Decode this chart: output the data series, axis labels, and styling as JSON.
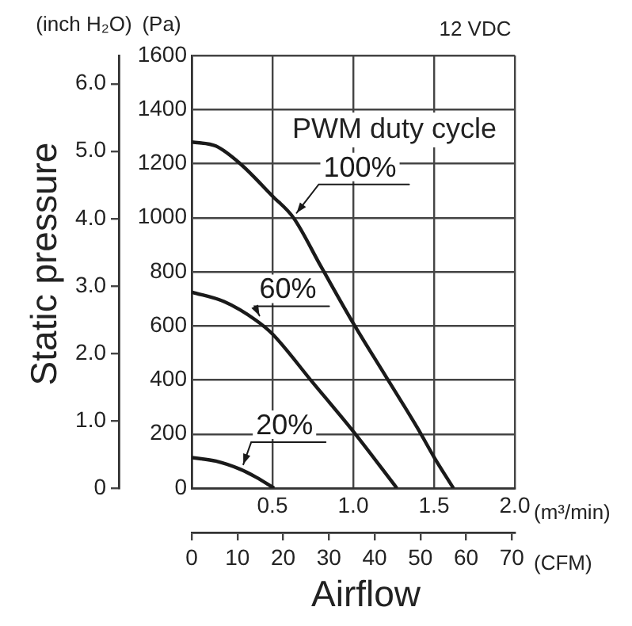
{
  "chart_data": {
    "type": "line",
    "annotations": [
      "12 VDC",
      "PWM duty cycle",
      "Static pressure",
      "Airflow"
    ],
    "xlabel": "(m³/min)",
    "x2label": "(CFM)",
    "ylabel": "(Pa)",
    "y2label": "(inch H₂O)",
    "xlim": [
      0,
      2
    ],
    "xticks": [
      {
        "value": 0.5,
        "label": "0.5"
      },
      {
        "value": 1,
        "label": "1.0"
      },
      {
        "value": 1.5,
        "label": "1.5"
      },
      {
        "value": 2,
        "label": "2.0"
      }
    ],
    "x2lim": [
      0,
      70.63
    ],
    "x2ticks": [
      0,
      10,
      20,
      30,
      40,
      50,
      60,
      70
    ],
    "ylim": [
      0,
      1600
    ],
    "yticks": [
      0,
      200,
      400,
      600,
      800,
      1000,
      1200,
      1400,
      1600
    ],
    "y2lim": [
      0,
      6.42
    ],
    "y2ticks": [
      0,
      {
        "value": 1,
        "label": "1.0"
      },
      {
        "value": 2,
        "label": "2.0"
      },
      {
        "value": 3,
        "label": "3.0"
      },
      {
        "value": 4,
        "label": "4.0"
      },
      {
        "value": 5,
        "label": "5.0"
      },
      {
        "value": 6,
        "label": "6.0"
      }
    ],
    "grid": true,
    "marker": "none",
    "line_style": "solid",
    "series": [
      {
        "name": "100%",
        "color": "#1a1a1a",
        "x": [
          0,
          0.15,
          0.3,
          0.5,
          0.63,
          0.8,
          1.0,
          1.2,
          1.4,
          1.5,
          1.62
        ],
        "values": [
          1280,
          1265,
          1200,
          1080,
          1000,
          820,
          610,
          415,
          220,
          115,
          0
        ]
      },
      {
        "name": "60%",
        "color": "#1a1a1a",
        "x": [
          0,
          0.2,
          0.4,
          0.5,
          0.75,
          1.0,
          1.27
        ],
        "values": [
          725,
          690,
          620,
          570,
          390,
          210,
          0
        ]
      },
      {
        "name": "20%",
        "color": "#1a1a1a",
        "x": [
          0,
          0.15,
          0.3,
          0.4,
          0.51
        ],
        "values": [
          113,
          100,
          70,
          40,
          0
        ]
      }
    ]
  }
}
